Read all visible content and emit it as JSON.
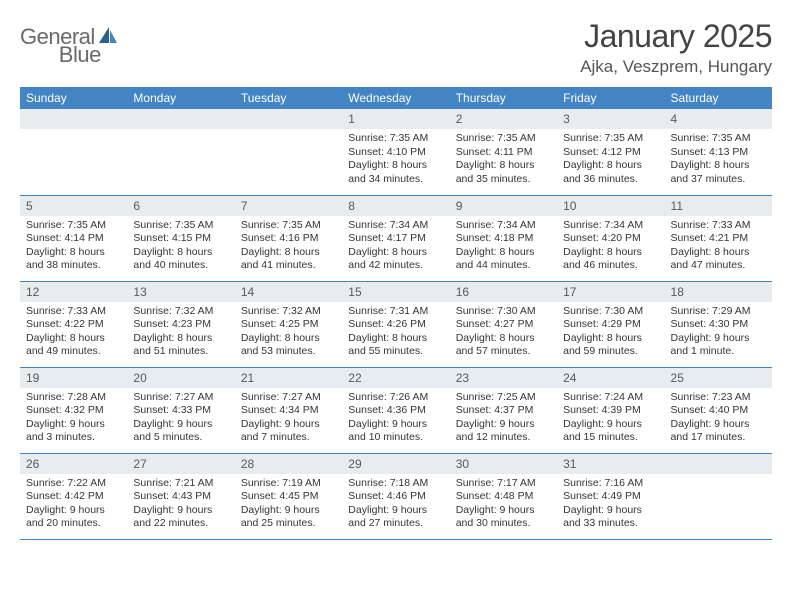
{
  "header": {
    "logo_text_1": "General",
    "logo_text_2": "Blue",
    "month_title": "January 2025",
    "location": "Ajka, Veszprem, Hungary"
  },
  "colors": {
    "brand_blue": "#4384c4",
    "header_row_bg": "#4384c4",
    "header_row_fg": "#ffffff",
    "daynum_bg": "#e9ecef",
    "text": "#333333",
    "row_border": "#4384c4",
    "background": "#ffffff"
  },
  "calendar": {
    "type": "table",
    "columns": [
      "Sunday",
      "Monday",
      "Tuesday",
      "Wednesday",
      "Thursday",
      "Friday",
      "Saturday"
    ],
    "weeks": [
      [
        {
          "day": "",
          "lines": []
        },
        {
          "day": "",
          "lines": []
        },
        {
          "day": "",
          "lines": []
        },
        {
          "day": "1",
          "lines": [
            "Sunrise: 7:35 AM",
            "Sunset: 4:10 PM",
            "Daylight: 8 hours and 34 minutes."
          ]
        },
        {
          "day": "2",
          "lines": [
            "Sunrise: 7:35 AM",
            "Sunset: 4:11 PM",
            "Daylight: 8 hours and 35 minutes."
          ]
        },
        {
          "day": "3",
          "lines": [
            "Sunrise: 7:35 AM",
            "Sunset: 4:12 PM",
            "Daylight: 8 hours and 36 minutes."
          ]
        },
        {
          "day": "4",
          "lines": [
            "Sunrise: 7:35 AM",
            "Sunset: 4:13 PM",
            "Daylight: 8 hours and 37 minutes."
          ]
        }
      ],
      [
        {
          "day": "5",
          "lines": [
            "Sunrise: 7:35 AM",
            "Sunset: 4:14 PM",
            "Daylight: 8 hours and 38 minutes."
          ]
        },
        {
          "day": "6",
          "lines": [
            "Sunrise: 7:35 AM",
            "Sunset: 4:15 PM",
            "Daylight: 8 hours and 40 minutes."
          ]
        },
        {
          "day": "7",
          "lines": [
            "Sunrise: 7:35 AM",
            "Sunset: 4:16 PM",
            "Daylight: 8 hours and 41 minutes."
          ]
        },
        {
          "day": "8",
          "lines": [
            "Sunrise: 7:34 AM",
            "Sunset: 4:17 PM",
            "Daylight: 8 hours and 42 minutes."
          ]
        },
        {
          "day": "9",
          "lines": [
            "Sunrise: 7:34 AM",
            "Sunset: 4:18 PM",
            "Daylight: 8 hours and 44 minutes."
          ]
        },
        {
          "day": "10",
          "lines": [
            "Sunrise: 7:34 AM",
            "Sunset: 4:20 PM",
            "Daylight: 8 hours and 46 minutes."
          ]
        },
        {
          "day": "11",
          "lines": [
            "Sunrise: 7:33 AM",
            "Sunset: 4:21 PM",
            "Daylight: 8 hours and 47 minutes."
          ]
        }
      ],
      [
        {
          "day": "12",
          "lines": [
            "Sunrise: 7:33 AM",
            "Sunset: 4:22 PM",
            "Daylight: 8 hours and 49 minutes."
          ]
        },
        {
          "day": "13",
          "lines": [
            "Sunrise: 7:32 AM",
            "Sunset: 4:23 PM",
            "Daylight: 8 hours and 51 minutes."
          ]
        },
        {
          "day": "14",
          "lines": [
            "Sunrise: 7:32 AM",
            "Sunset: 4:25 PM",
            "Daylight: 8 hours and 53 minutes."
          ]
        },
        {
          "day": "15",
          "lines": [
            "Sunrise: 7:31 AM",
            "Sunset: 4:26 PM",
            "Daylight: 8 hours and 55 minutes."
          ]
        },
        {
          "day": "16",
          "lines": [
            "Sunrise: 7:30 AM",
            "Sunset: 4:27 PM",
            "Daylight: 8 hours and 57 minutes."
          ]
        },
        {
          "day": "17",
          "lines": [
            "Sunrise: 7:30 AM",
            "Sunset: 4:29 PM",
            "Daylight: 8 hours and 59 minutes."
          ]
        },
        {
          "day": "18",
          "lines": [
            "Sunrise: 7:29 AM",
            "Sunset: 4:30 PM",
            "Daylight: 9 hours and 1 minute."
          ]
        }
      ],
      [
        {
          "day": "19",
          "lines": [
            "Sunrise: 7:28 AM",
            "Sunset: 4:32 PM",
            "Daylight: 9 hours and 3 minutes."
          ]
        },
        {
          "day": "20",
          "lines": [
            "Sunrise: 7:27 AM",
            "Sunset: 4:33 PM",
            "Daylight: 9 hours and 5 minutes."
          ]
        },
        {
          "day": "21",
          "lines": [
            "Sunrise: 7:27 AM",
            "Sunset: 4:34 PM",
            "Daylight: 9 hours and 7 minutes."
          ]
        },
        {
          "day": "22",
          "lines": [
            "Sunrise: 7:26 AM",
            "Sunset: 4:36 PM",
            "Daylight: 9 hours and 10 minutes."
          ]
        },
        {
          "day": "23",
          "lines": [
            "Sunrise: 7:25 AM",
            "Sunset: 4:37 PM",
            "Daylight: 9 hours and 12 minutes."
          ]
        },
        {
          "day": "24",
          "lines": [
            "Sunrise: 7:24 AM",
            "Sunset: 4:39 PM",
            "Daylight: 9 hours and 15 minutes."
          ]
        },
        {
          "day": "25",
          "lines": [
            "Sunrise: 7:23 AM",
            "Sunset: 4:40 PM",
            "Daylight: 9 hours and 17 minutes."
          ]
        }
      ],
      [
        {
          "day": "26",
          "lines": [
            "Sunrise: 7:22 AM",
            "Sunset: 4:42 PM",
            "Daylight: 9 hours and 20 minutes."
          ]
        },
        {
          "day": "27",
          "lines": [
            "Sunrise: 7:21 AM",
            "Sunset: 4:43 PM",
            "Daylight: 9 hours and 22 minutes."
          ]
        },
        {
          "day": "28",
          "lines": [
            "Sunrise: 7:19 AM",
            "Sunset: 4:45 PM",
            "Daylight: 9 hours and 25 minutes."
          ]
        },
        {
          "day": "29",
          "lines": [
            "Sunrise: 7:18 AM",
            "Sunset: 4:46 PM",
            "Daylight: 9 hours and 27 minutes."
          ]
        },
        {
          "day": "30",
          "lines": [
            "Sunrise: 7:17 AM",
            "Sunset: 4:48 PM",
            "Daylight: 9 hours and 30 minutes."
          ]
        },
        {
          "day": "31",
          "lines": [
            "Sunrise: 7:16 AM",
            "Sunset: 4:49 PM",
            "Daylight: 9 hours and 33 minutes."
          ]
        },
        {
          "day": "",
          "lines": []
        }
      ]
    ]
  }
}
